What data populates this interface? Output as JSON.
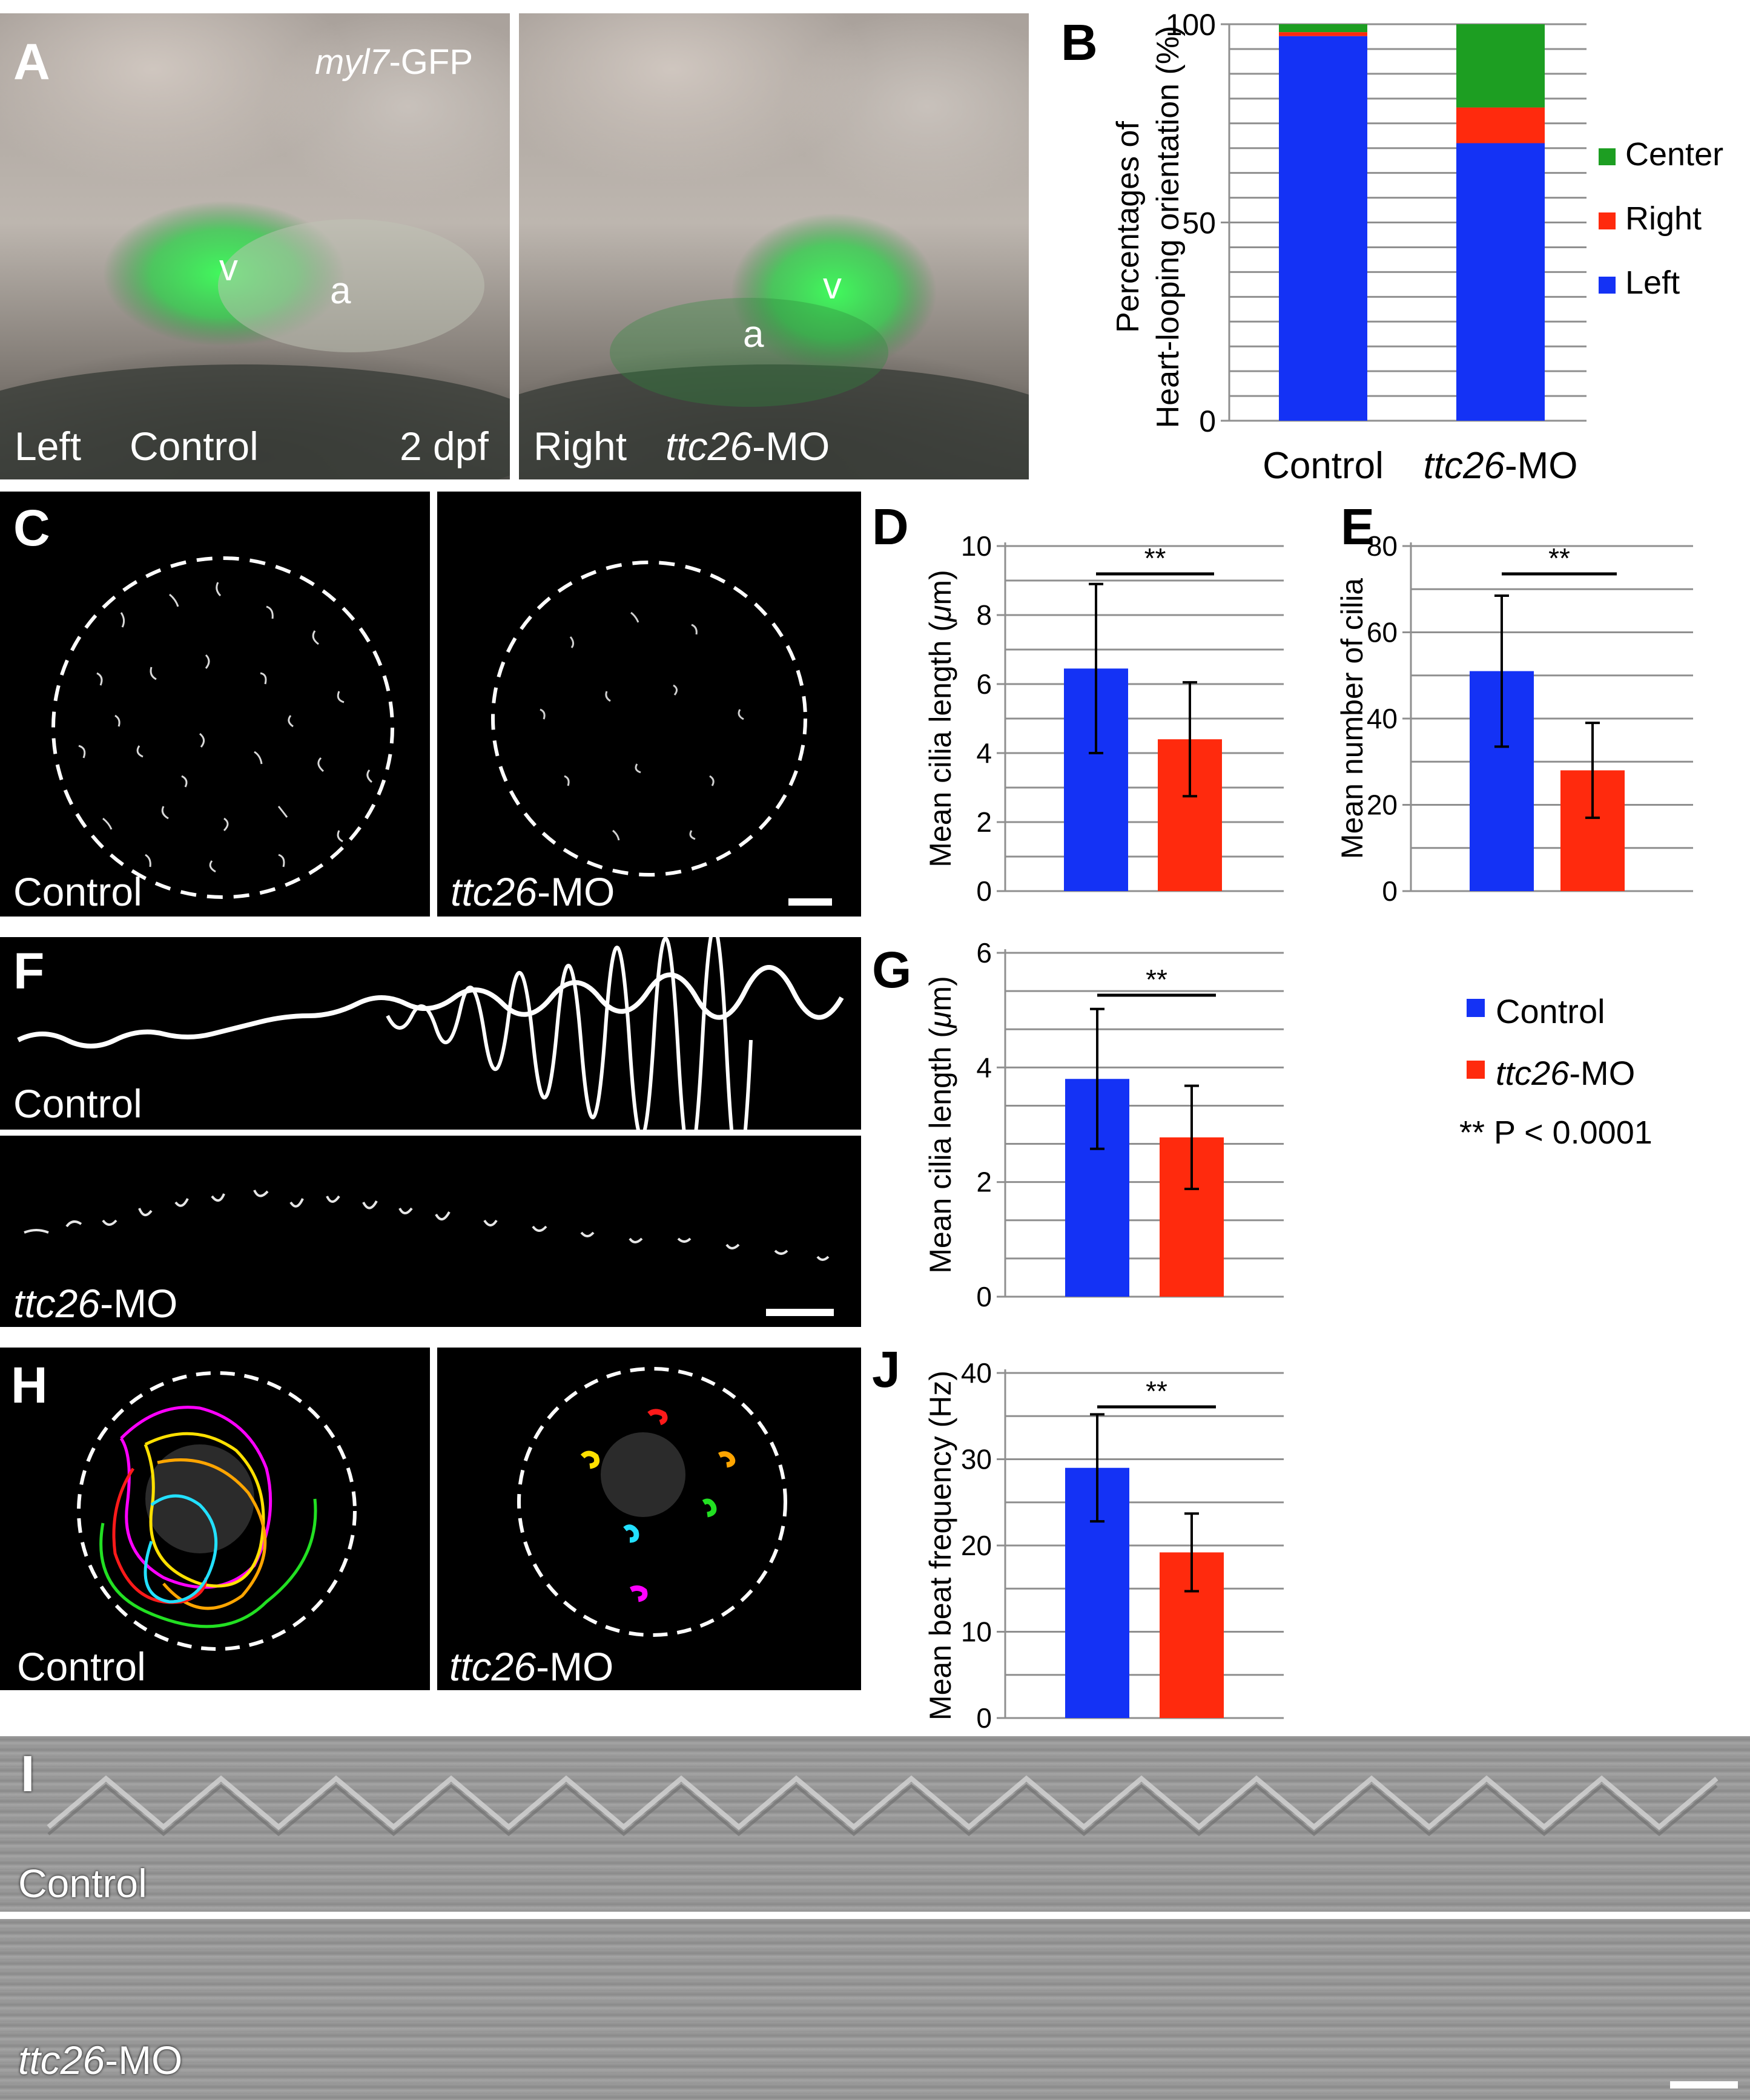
{
  "panels": {
    "A": {
      "letter": "A",
      "marker": "myl7",
      "marker_suffix": "-GFP",
      "left_img": {
        "v": "v",
        "a": "a",
        "side": "Left",
        "group": "Control",
        "stage": "2 dpf"
      },
      "right_img": {
        "v": "v",
        "a": "a",
        "side": "Right",
        "group_italic": "ttc26",
        "group_suffix": "-MO"
      }
    },
    "B": {
      "letter": "B"
    },
    "C": {
      "letter": "C",
      "left_label": "Control",
      "right_label_italic": "ttc26",
      "right_label_suffix": "-MO"
    },
    "D": {
      "letter": "D"
    },
    "E": {
      "letter": "E"
    },
    "F": {
      "letter": "F",
      "top_label": "Control",
      "bottom_label_italic": "ttc26",
      "bottom_label_suffix": "-MO"
    },
    "G": {
      "letter": "G"
    },
    "H": {
      "letter": "H",
      "left_label": "Control",
      "right_label_italic": "ttc26",
      "right_label_suffix": "-MO"
    },
    "I": {
      "letter": "I",
      "top_label": "Control",
      "bottom_label_italic": "ttc26",
      "bottom_label_suffix": "-MO"
    },
    "J": {
      "letter": "J"
    }
  },
  "legend": {
    "items": [
      {
        "label": "Control",
        "color": "#1432f5"
      },
      {
        "label_italic": "ttc26",
        "label_suffix": "-MO",
        "color": "#ff2a0d"
      }
    ],
    "significance": "** P < 0.0001"
  },
  "colors": {
    "control": "#1432f5",
    "ttc26": "#ff2a0d",
    "center": "#1d9e22"
  },
  "chart_data": [
    {
      "panel": "B",
      "type": "bar",
      "stacked": true,
      "categories": [
        "Control",
        "ttc26-MO"
      ],
      "series": [
        {
          "name": "Left",
          "color": "#1432f5",
          "values": [
            97,
            70
          ]
        },
        {
          "name": "Right",
          "color": "#ff2a0d",
          "values": [
            1,
            9
          ]
        },
        {
          "name": "Center",
          "color": "#1d9e22",
          "values": [
            2,
            21
          ]
        }
      ],
      "ylabel_line1": "Percentages of",
      "ylabel_line2": "Heart-looping orientation (%)",
      "yticks": [
        0,
        50,
        100
      ],
      "ylim": [
        0,
        100
      ],
      "grid": true,
      "legend_position": "right"
    },
    {
      "panel": "D",
      "type": "bar",
      "categories": [
        "Control",
        "ttc26-MO"
      ],
      "values": [
        6.45,
        4.4
      ],
      "errors": [
        2.45,
        1.65
      ],
      "ylabel": "Mean cilia length (μm)",
      "yticks": [
        0,
        2,
        4,
        6,
        8,
        10
      ],
      "ylim": [
        0,
        10
      ],
      "significance": "**",
      "grid": true
    },
    {
      "panel": "E",
      "type": "bar",
      "categories": [
        "Control",
        "ttc26-MO"
      ],
      "values": [
        51,
        28
      ],
      "errors": [
        17.5,
        11
      ],
      "ylabel": "Mean number of cilia",
      "yticks": [
        0,
        20,
        40,
        60,
        80
      ],
      "ylim": [
        0,
        80
      ],
      "significance": "**",
      "grid": true
    },
    {
      "panel": "G",
      "type": "bar",
      "categories": [
        "Control",
        "ttc26-MO"
      ],
      "values": [
        3.8,
        2.78
      ],
      "errors": [
        1.22,
        0.9
      ],
      "ylabel": "Mean cilia length (μm)",
      "yticks": [
        0,
        2,
        4,
        6
      ],
      "ylim": [
        0,
        6
      ],
      "significance": "**",
      "grid": true
    },
    {
      "panel": "J",
      "type": "bar",
      "categories": [
        "Control",
        "ttc26-MO"
      ],
      "values": [
        29,
        19.2
      ],
      "errors": [
        6.2,
        4.5
      ],
      "ylabel": "Mean beat frequency (Hz)",
      "yticks": [
        0,
        10,
        20,
        30,
        40
      ],
      "ylim": [
        0,
        40
      ],
      "significance": "**",
      "grid": true
    }
  ]
}
